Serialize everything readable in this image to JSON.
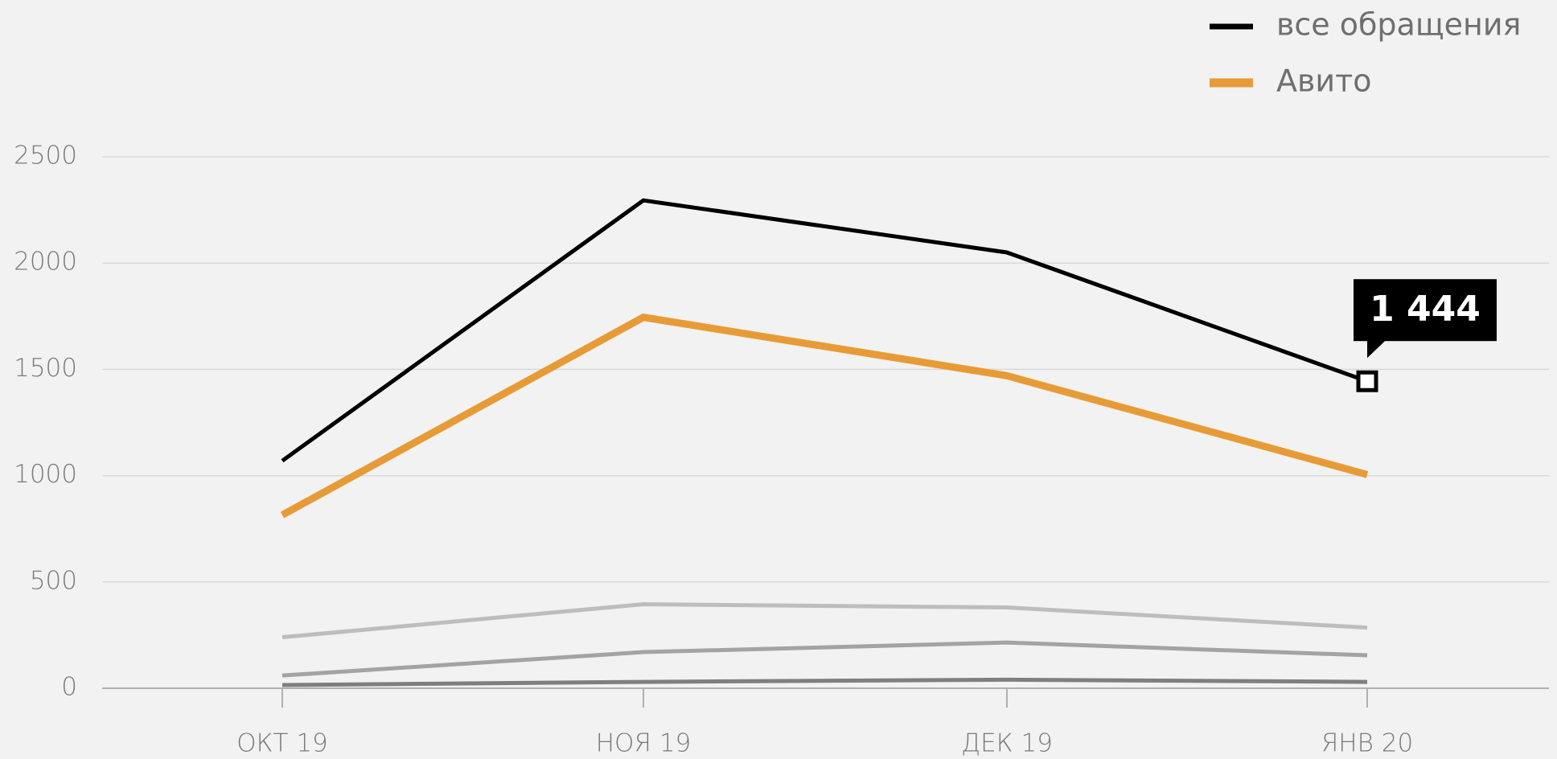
{
  "chart_data": {
    "type": "line",
    "categories": [
      "ОКТ 19",
      "НОЯ 19",
      "ДЕК 19",
      "ЯНВ 20"
    ],
    "series": [
      {
        "name": "все обращения",
        "color": "#000000",
        "values": [
          1070,
          2295,
          2050,
          1444
        ],
        "value_labels": [
          null,
          null,
          null,
          "1 444"
        ]
      },
      {
        "name": "Авито",
        "color": "#e79b37",
        "values": [
          815,
          1745,
          1470,
          1005
        ]
      },
      {
        "color": "#bdbdbd",
        "values": [
          240,
          395,
          380,
          285
        ]
      },
      {
        "color": "#a3a3a3",
        "values": [
          60,
          170,
          215,
          155
        ]
      },
      {
        "color": "#7f7f7f",
        "values": [
          15,
          30,
          40,
          30
        ]
      }
    ],
    "ylim": [
      0,
      2500
    ],
    "yticks": [
      0,
      500,
      1000,
      1500,
      2000,
      2500
    ],
    "grid": true,
    "legend": "top-right"
  }
}
